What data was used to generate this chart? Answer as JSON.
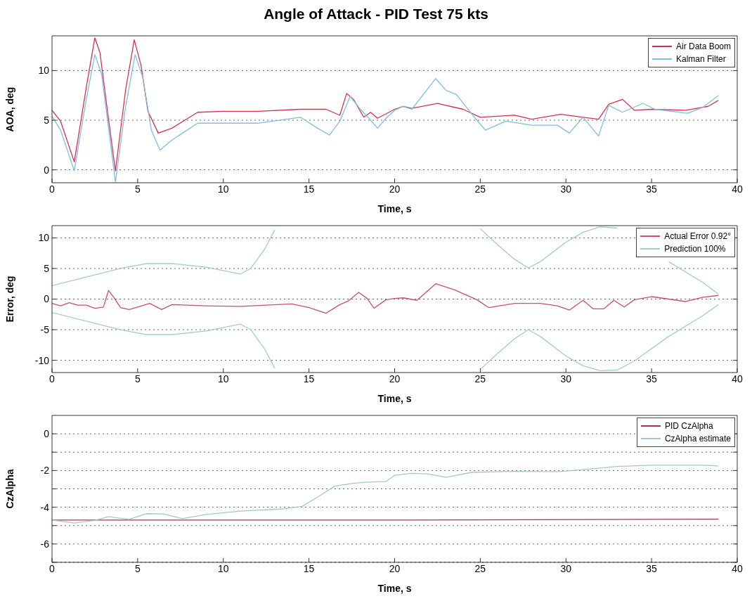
{
  "chart_data": [
    {
      "type": "line",
      "title": "Angle of Attack - PID Test 75 kts",
      "xlabel": "Time, s",
      "ylabel": "AOA, deg",
      "xlim": [
        0,
        40
      ],
      "xticks": [
        0,
        5,
        10,
        15,
        20,
        25,
        30,
        35,
        40
      ],
      "ylim": [
        -1.3,
        13.5
      ],
      "yticks": [
        0,
        5,
        10
      ],
      "grid": "y",
      "legend": "top right",
      "series": [
        {
          "name": "Air Data Boom",
          "color": "#d6304f",
          "x": [
            0,
            0.5,
            1.3,
            2,
            2.5,
            2.8,
            3.2,
            3.7,
            4.3,
            4.8,
            5.2,
            5.6,
            6.2,
            7,
            8.5,
            10,
            12,
            14.5,
            16,
            16.8,
            17.2,
            17.6,
            18.2,
            18.6,
            19,
            20,
            20.5,
            21,
            22.5,
            24,
            25,
            27,
            28,
            29.7,
            31,
            31.9,
            32.5,
            33.3,
            34,
            35,
            37,
            38.3,
            38.9
          ],
          "values": [
            6,
            4.9,
            0.8,
            8.3,
            13.3,
            11.8,
            6.4,
            -0.1,
            8.1,
            13.1,
            10.5,
            5.9,
            3.7,
            4.2,
            5.8,
            5.9,
            5.9,
            6.1,
            6.1,
            5.5,
            7.7,
            7.1,
            5.3,
            5.8,
            5.2,
            6.1,
            6.4,
            6.2,
            6.7,
            6.1,
            5.3,
            5.5,
            5.1,
            5.6,
            5.3,
            5.1,
            6.6,
            7.1,
            6,
            6.1,
            6,
            6.4,
            7
          ]
        },
        {
          "name": "Kalman Filter",
          "color": "#7cbfe0",
          "x": [
            0,
            0.5,
            1.3,
            2,
            2.5,
            2.9,
            3.3,
            3.7,
            4.3,
            4.85,
            5.3,
            5.8,
            6.3,
            7,
            8.5,
            10,
            12,
            14.5,
            15.5,
            16.2,
            16.8,
            17.4,
            18,
            18.5,
            19,
            19.5,
            20,
            20.5,
            21,
            21.5,
            22.4,
            23,
            23.6,
            24.7,
            25.3,
            26.5,
            28,
            29.5,
            30.2,
            31,
            31.9,
            32.5,
            33.3,
            34.5,
            35.2,
            37.1,
            38,
            38.9
          ],
          "values": [
            5.4,
            4,
            -0.1,
            7.1,
            11.6,
            9.6,
            4.2,
            -1.2,
            6.4,
            11.6,
            9.3,
            4,
            2,
            3,
            4.7,
            4.7,
            4.7,
            5.3,
            4.2,
            3.5,
            4.9,
            7.4,
            6.1,
            5.2,
            4.2,
            5.2,
            6,
            6.4,
            6.1,
            7.2,
            9.2,
            8,
            7.6,
            5.2,
            4,
            4.9,
            4.5,
            4.5,
            3.7,
            5.3,
            3.4,
            6.5,
            5.8,
            6.7,
            6.1,
            5.7,
            6.3,
            7.5
          ]
        }
      ]
    },
    {
      "type": "line",
      "xlabel": "Time, s",
      "ylabel": "Error, deg",
      "xlim": [
        0,
        40
      ],
      "xticks": [
        0,
        5,
        10,
        15,
        20,
        25,
        30,
        35,
        40
      ],
      "ylim": [
        -12,
        12
      ],
      "yticks": [
        -10,
        -5,
        0,
        5,
        10
      ],
      "grid": "y",
      "legend": "top right",
      "series": [
        {
          "name": "Actual Error 0.92°",
          "color": "#c8506a",
          "x": [
            0,
            0.5,
            1,
            1.5,
            2,
            2.5,
            3,
            3.3,
            3.6,
            4,
            4.5,
            5,
            5.7,
            6.4,
            7,
            9,
            11,
            14,
            15,
            16,
            16.8,
            17.3,
            17.9,
            18.4,
            18.8,
            19.5,
            20,
            20.5,
            21.3,
            22.4,
            23.5,
            24.8,
            25.5,
            27,
            28.5,
            29.5,
            30.2,
            31,
            31.6,
            32.2,
            32.8,
            33.4,
            34,
            35,
            37,
            38,
            38.9
          ],
          "values": [
            -0.7,
            -1.1,
            -0.6,
            -1,
            -1,
            -1.5,
            -1.3,
            1.4,
            0.3,
            -1.4,
            -1.7,
            -1.3,
            -0.7,
            -1.7,
            -0.9,
            -1.1,
            -1.2,
            -0.8,
            -1.4,
            -2.3,
            -0.9,
            -0.3,
            1.1,
            0.1,
            -1.5,
            -0.1,
            0.1,
            0.2,
            -0.2,
            2.5,
            1.5,
            -0.1,
            -1.4,
            -0.7,
            -0.7,
            -1.1,
            -1.8,
            -0.2,
            -1.6,
            -1.6,
            -0.2,
            -1.3,
            -0.1,
            0.4,
            -0.4,
            0.3,
            0.6
          ]
        },
        {
          "name": "Prediction 100%",
          "color": "#a4cad8",
          "x": [
            0,
            2,
            4,
            5.5,
            7,
            9,
            11,
            11.6,
            12.4,
            13,
            13.15,
            20,
            24.8,
            25,
            26,
            27,
            27.8,
            28.5,
            30,
            31,
            32,
            33,
            34,
            36,
            38,
            38.9
          ],
          "values": [
            2.2,
            3.6,
            5,
            5.8,
            5.8,
            5.2,
            4.1,
            5,
            8.1,
            11.3,
            null,
            null,
            null,
            11.5,
            8.9,
            6.5,
            5.1,
            6.1,
            9.3,
            10.9,
            11.8,
            11.6,
            null,
            6.1,
            2.7,
            0.8
          ]
        },
        {
          "color": "#a4cad8",
          "x": [
            0,
            2,
            4,
            5.5,
            7,
            9,
            11,
            11.6,
            12.4,
            13,
            13.3,
            20,
            24.8,
            25,
            26,
            27,
            27.8,
            28.5,
            30,
            31,
            32,
            33,
            34,
            36,
            38,
            38.9
          ],
          "values": [
            -2.2,
            -3.6,
            -5,
            -5.8,
            -5.8,
            -5.2,
            -4.1,
            -5,
            -8.1,
            -11.3,
            null,
            null,
            null,
            -11.5,
            -8.9,
            -6.5,
            -5,
            -6.1,
            -9.3,
            -10.9,
            -11.7,
            -11.6,
            -10.1,
            -6.1,
            -2.7,
            -0.9
          ]
        }
      ]
    },
    {
      "type": "line",
      "xlabel": "Time, s",
      "ylabel": "CzAlpha",
      "xlim": [
        0,
        40
      ],
      "xticks": [
        0,
        5,
        10,
        15,
        20,
        25,
        30,
        35,
        40
      ],
      "ylim": [
        -7,
        1
      ],
      "yticks": [
        {
          "value": -7,
          "label": null
        },
        -6,
        {
          "value": -5,
          "label": null
        },
        -4,
        {
          "value": -3,
          "label": null
        },
        -2,
        {
          "value": -1,
          "label": null
        },
        0
      ],
      "grid": "y",
      "legend": "top right",
      "series": [
        {
          "name": "PID CzAlpha",
          "color": "#b03050",
          "x": [
            0,
            20,
            38.9
          ],
          "values": [
            -4.7,
            -4.7,
            -4.65
          ]
        },
        {
          "name": "CzAlpha estimate",
          "color": "#a8c4d4",
          "x": [
            0,
            1.3,
            2.5,
            3.3,
            4.5,
            5.5,
            6.5,
            7.6,
            9,
            11,
            13.5,
            14.6,
            15.5,
            16.5,
            17.5,
            18.2,
            19.5,
            20,
            21,
            22,
            23,
            24.5,
            27,
            29.5,
            31,
            33,
            35,
            38,
            38.9
          ],
          "values": [
            -4.7,
            -4.86,
            -4.72,
            -4.52,
            -4.66,
            -4.35,
            -4.36,
            -4.62,
            -4.39,
            -4.21,
            -4.09,
            -3.95,
            -3.45,
            -2.85,
            -2.71,
            -2.64,
            -2.6,
            -2.26,
            -2.15,
            -2.19,
            -2.37,
            -2.1,
            -2.05,
            -2.07,
            -1.95,
            -1.78,
            -1.71,
            -1.71,
            -1.75
          ]
        }
      ]
    }
  ]
}
